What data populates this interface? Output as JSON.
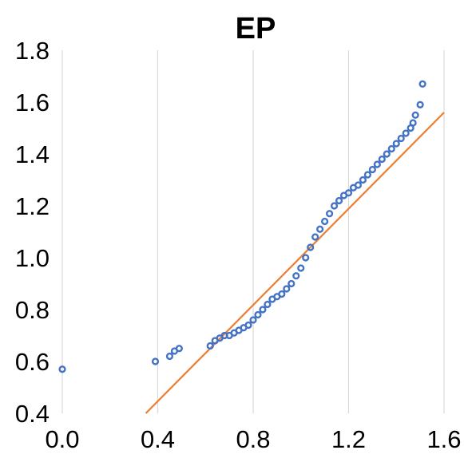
{
  "chart_data": {
    "type": "scatter",
    "title": "EP",
    "xlabel": "",
    "ylabel": "",
    "xlim": [
      0.0,
      1.6
    ],
    "ylim": [
      0.4,
      1.8
    ],
    "x_ticks": [
      "0.0",
      "0.4",
      "0.8",
      "1.2",
      "1.6"
    ],
    "y_ticks": [
      "0.4",
      "0.6",
      "0.8",
      "1.0",
      "1.2",
      "1.4",
      "1.6",
      "1.8"
    ],
    "grid": {
      "vertical": true,
      "horizontal": false
    },
    "colors": {
      "points": "#4472c4",
      "line": "#ed7d31",
      "grid": "#d9d9d9"
    },
    "series": [
      {
        "kind": "points",
        "x": [
          0.0,
          0.39,
          0.45,
          0.47,
          0.49,
          0.62,
          0.64,
          0.66,
          0.68,
          0.7,
          0.72,
          0.74,
          0.76,
          0.78,
          0.8,
          0.82,
          0.84,
          0.86,
          0.88,
          0.9,
          0.92,
          0.94,
          0.96,
          0.98,
          1.0,
          1.02,
          1.04,
          1.06,
          1.08,
          1.1,
          1.12,
          1.14,
          1.16,
          1.18,
          1.2,
          1.22,
          1.24,
          1.26,
          1.28,
          1.3,
          1.32,
          1.34,
          1.36,
          1.38,
          1.4,
          1.42,
          1.44,
          1.46,
          1.47,
          1.48,
          1.5,
          1.51
        ],
        "y": [
          0.57,
          0.6,
          0.62,
          0.64,
          0.65,
          0.66,
          0.68,
          0.69,
          0.7,
          0.7,
          0.71,
          0.72,
          0.73,
          0.74,
          0.76,
          0.78,
          0.8,
          0.82,
          0.84,
          0.85,
          0.86,
          0.88,
          0.9,
          0.93,
          0.96,
          1.0,
          1.04,
          1.08,
          1.11,
          1.14,
          1.17,
          1.2,
          1.22,
          1.24,
          1.25,
          1.27,
          1.28,
          1.3,
          1.32,
          1.34,
          1.36,
          1.38,
          1.4,
          1.42,
          1.44,
          1.46,
          1.48,
          1.5,
          1.52,
          1.55,
          1.59,
          1.67
        ]
      },
      {
        "kind": "line",
        "x": [
          0.35,
          1.6
        ],
        "y": [
          0.4,
          1.56
        ]
      }
    ]
  }
}
